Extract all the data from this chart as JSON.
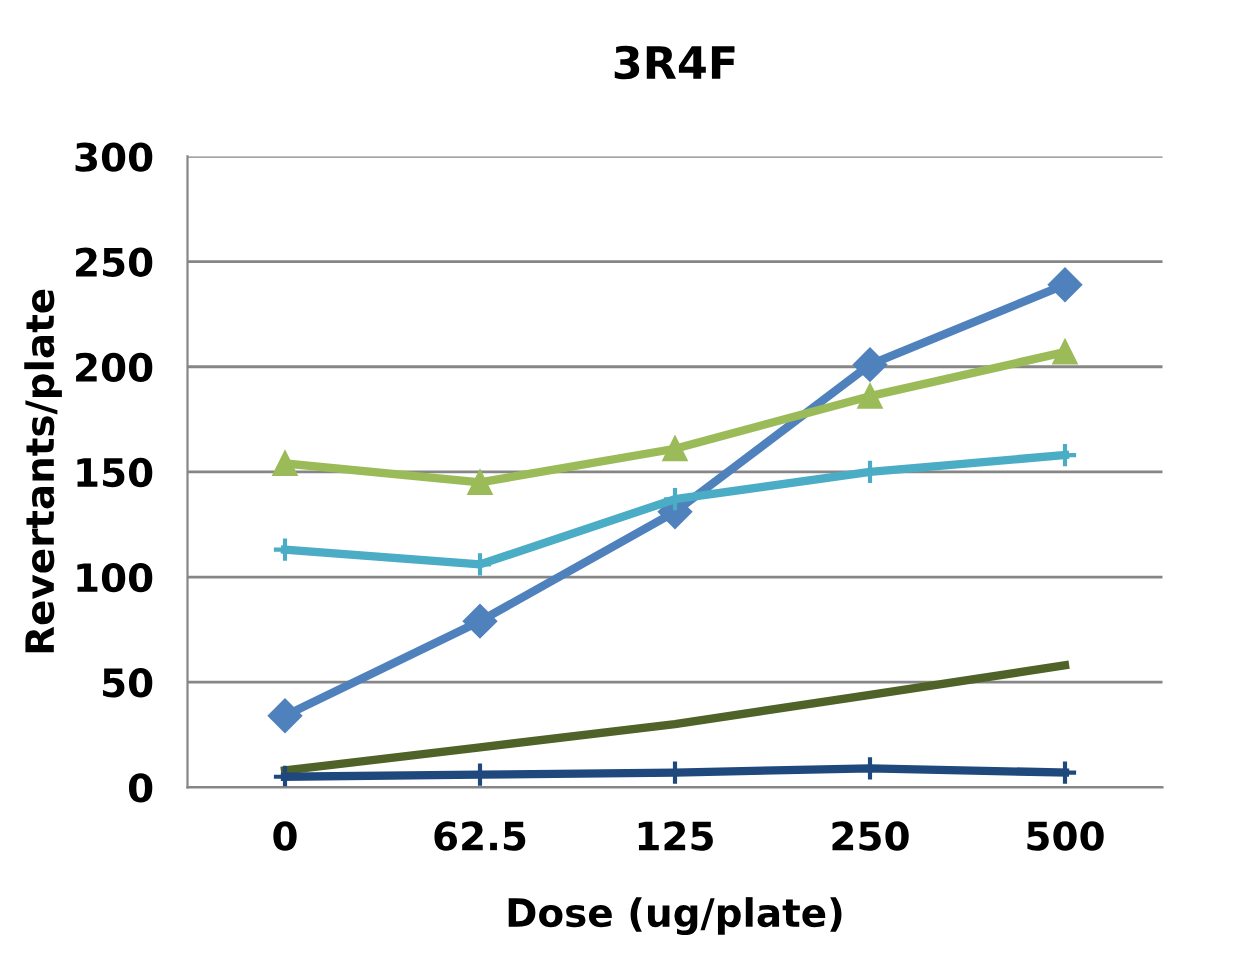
{
  "chart_data": {
    "type": "line",
    "title": "3R4F",
    "xlabel": "Dose (ug/plate)",
    "ylabel": "Revertants/plate",
    "categories": [
      "0",
      "62.5",
      "125",
      "250",
      "500"
    ],
    "series": [
      {
        "color": "#4f81bd",
        "marker": "diamond",
        "values": [
          34,
          79,
          131,
          201,
          239
        ]
      },
      {
        "color": "#9bbb59",
        "marker": "triangle",
        "values": [
          154,
          145,
          161,
          186,
          207
        ]
      },
      {
        "color": "#4bacc6",
        "marker": "cross",
        "values": [
          113,
          106,
          137,
          150,
          158
        ]
      },
      {
        "color": "#4f6228",
        "marker": "none",
        "values": [
          8,
          19,
          30,
          44,
          58
        ]
      },
      {
        "color": "#1f497d",
        "marker": "cross",
        "values": [
          5,
          6,
          7,
          9,
          7
        ]
      }
    ],
    "ylim": [
      0,
      300
    ],
    "yticks": [
      0,
      50,
      100,
      150,
      200,
      250,
      300
    ],
    "grid": "y",
    "legend": false
  }
}
